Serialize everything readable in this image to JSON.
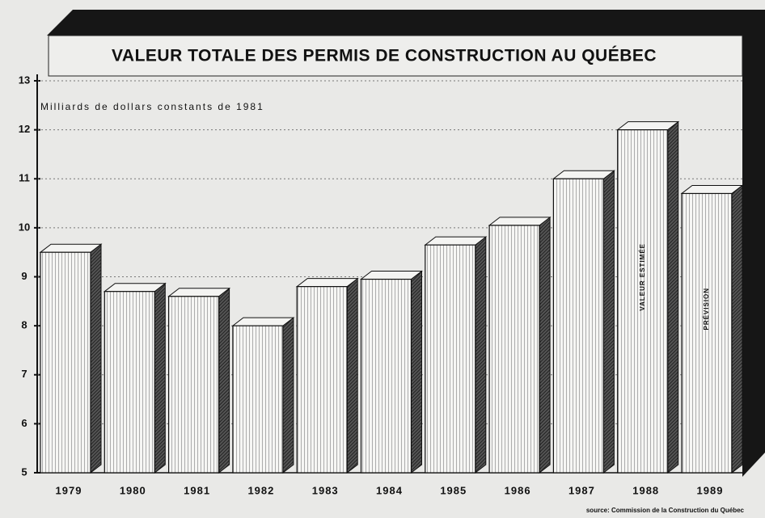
{
  "chart_data": {
    "type": "bar",
    "title": "VALEUR TOTALE DES PERMIS DE CONSTRUCTION AU QUÉBEC",
    "y_label": "Milliards de dollars constants de 1981",
    "categories": [
      "1979",
      "1980",
      "1981",
      "1982",
      "1983",
      "1984",
      "1985",
      "1986",
      "1987",
      "1988",
      "1989"
    ],
    "values": [
      9.5,
      8.7,
      8.6,
      8.0,
      8.8,
      8.95,
      9.65,
      10.05,
      11.0,
      12.0,
      10.7
    ],
    "color": "#f4f4f2",
    "ylim": [
      5,
      13
    ],
    "yticks": [
      5,
      6,
      7,
      8,
      9,
      10,
      11,
      12,
      13
    ],
    "grid": true,
    "annotations": [
      {
        "text": "VALEUR ESTIMÉE",
        "category": "1988"
      },
      {
        "text": "PRÉVISION",
        "category": "1989"
      }
    ],
    "source": "source: Commission de la Construction du Québec"
  }
}
